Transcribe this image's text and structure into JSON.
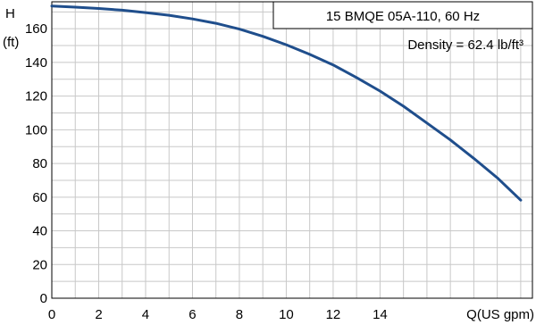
{
  "chart_data": {
    "type": "line",
    "title": "15 BMQE 05A-110, 60 Hz",
    "subtitle": "Density = 62.4 lb/ft³",
    "ylabel_line1": "H",
    "ylabel_line2": "(ft)",
    "xlabel": "Q(US gpm)",
    "xlim": [
      0,
      20.5
    ],
    "ylim": [
      0,
      176
    ],
    "x_ticks": [
      0,
      2,
      4,
      6,
      8,
      10,
      12,
      14
    ],
    "x_tick_labels": [
      "0",
      "2",
      "4",
      "6",
      "8",
      "10",
      "12",
      "14"
    ],
    "y_ticks": [
      0,
      20,
      40,
      60,
      80,
      100,
      120,
      140,
      160
    ],
    "y_tick_labels": [
      "0",
      "20",
      "40",
      "60",
      "80",
      "100",
      "120",
      "140",
      "160"
    ],
    "grid": true,
    "series": [
      {
        "color": "#1f4e8c",
        "x": [
          0,
          1,
          2,
          3,
          4,
          5,
          6,
          7,
          8,
          9,
          10,
          11,
          12,
          13,
          14,
          15,
          16,
          17,
          18,
          19,
          20
        ],
        "y": [
          173.5,
          172.8,
          172,
          171,
          169.6,
          168,
          165.8,
          163.2,
          159.8,
          155.5,
          150.5,
          144.8,
          138.5,
          131,
          123,
          114,
          104,
          94,
          83,
          71.5,
          58.2
        ]
      }
    ]
  }
}
